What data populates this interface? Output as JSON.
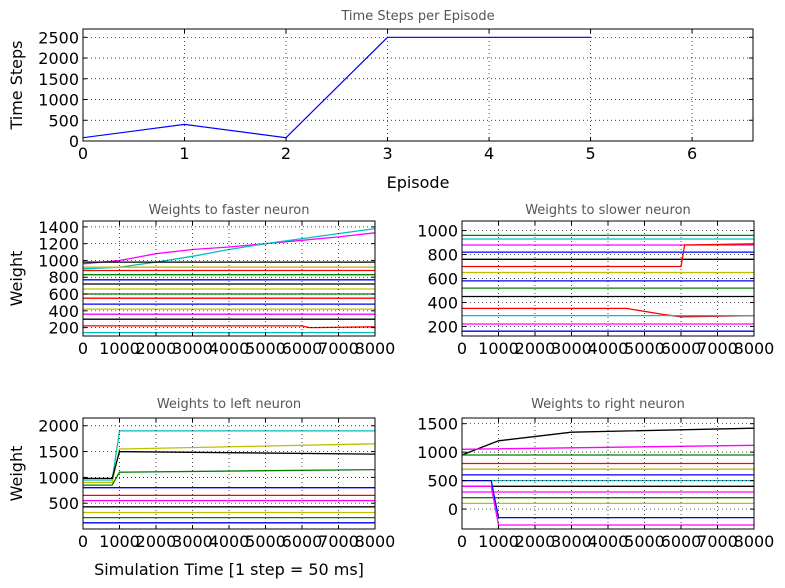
{
  "chart_data": [
    {
      "type": "line",
      "title": "Time Steps per Episode",
      "xlabel": "Episode",
      "ylabel": "Time Steps",
      "xlim": [
        0,
        6.6
      ],
      "ylim": [
        0,
        2700
      ],
      "xticks": [
        0,
        1,
        2,
        3,
        4,
        5,
        6
      ],
      "yticks": [
        0,
        500,
        1000,
        1500,
        2000,
        2500
      ],
      "grid": true,
      "series": [
        {
          "color": "#0000ff",
          "x": [
            0,
            1,
            2,
            3,
            4,
            5
          ],
          "y": [
            80,
            400,
            80,
            2500,
            2500,
            2500
          ]
        }
      ]
    },
    {
      "type": "line",
      "title": "Weights to faster neuron",
      "xlabel": "",
      "ylabel": "Weight",
      "xlim": [
        0,
        8000
      ],
      "ylim": [
        100,
        1470
      ],
      "xticks": [
        0,
        1000,
        2000,
        3000,
        4000,
        5000,
        6000,
        7000,
        8000
      ],
      "yticks": [
        200,
        400,
        600,
        800,
        1000,
        1200,
        1400
      ],
      "grid": true,
      "series": [
        {
          "color": "#ff00ff",
          "x": [
            0,
            1000,
            2000,
            3000,
            4000,
            5000,
            6000,
            7000,
            8000
          ],
          "y": [
            960,
            1000,
            1080,
            1130,
            1160,
            1200,
            1240,
            1280,
            1330
          ]
        },
        {
          "color": "#00bfbf",
          "x": [
            0,
            1000,
            2000,
            3000,
            4000,
            5000,
            6000,
            7000,
            8000
          ],
          "y": [
            900,
            920,
            980,
            1050,
            1130,
            1200,
            1260,
            1320,
            1380
          ]
        },
        {
          "color": "#000000",
          "x": [
            0,
            8000
          ],
          "y": [
            980,
            980
          ]
        },
        {
          "color": "#bfbf00",
          "x": [
            0,
            8000
          ],
          "y": [
            920,
            920
          ]
        },
        {
          "color": "#ff0000",
          "x": [
            0,
            8000
          ],
          "y": [
            880,
            880
          ]
        },
        {
          "color": "#008000",
          "x": [
            0,
            8000
          ],
          "y": [
            830,
            830
          ]
        },
        {
          "color": "#0000ff",
          "x": [
            0,
            8000
          ],
          "y": [
            770,
            770
          ]
        },
        {
          "color": "#000000",
          "x": [
            0,
            8000
          ],
          "y": [
            720,
            720
          ]
        },
        {
          "color": "#bfbf00",
          "x": [
            0,
            8000
          ],
          "y": [
            660,
            660
          ]
        },
        {
          "color": "#008000",
          "x": [
            0,
            8000
          ],
          "y": [
            600,
            600
          ]
        },
        {
          "color": "#ff0000",
          "x": [
            0,
            8000
          ],
          "y": [
            550,
            550
          ]
        },
        {
          "color": "#0000ff",
          "x": [
            0,
            8000
          ],
          "y": [
            480,
            480
          ]
        },
        {
          "color": "#bfbf00",
          "x": [
            0,
            8000
          ],
          "y": [
            420,
            420
          ]
        },
        {
          "color": "#ff00ff",
          "x": [
            0,
            8000
          ],
          "y": [
            360,
            360
          ]
        },
        {
          "color": "#000000",
          "x": [
            0,
            8000
          ],
          "y": [
            300,
            300
          ]
        },
        {
          "color": "#ff0000",
          "x": [
            0,
            6000,
            6200,
            8000
          ],
          "y": [
            220,
            220,
            200,
            210
          ]
        },
        {
          "color": "#00bfbf",
          "x": [
            0,
            8000
          ],
          "y": [
            140,
            140
          ]
        }
      ]
    },
    {
      "type": "line",
      "title": "Weights to slower neuron",
      "xlabel": "",
      "ylabel": "",
      "xlim": [
        0,
        8000
      ],
      "ylim": [
        120,
        1080
      ],
      "xticks": [
        0,
        1000,
        2000,
        3000,
        4000,
        5000,
        6000,
        7000,
        8000
      ],
      "yticks": [
        200,
        400,
        600,
        800,
        1000
      ],
      "grid": true,
      "series": [
        {
          "color": "#008000",
          "x": [
            0,
            8000
          ],
          "y": [
            960,
            960
          ]
        },
        {
          "color": "#00bfbf",
          "x": [
            0,
            8000
          ],
          "y": [
            930,
            930
          ]
        },
        {
          "color": "#ff00ff",
          "x": [
            0,
            8000
          ],
          "y": [
            880,
            880
          ]
        },
        {
          "color": "#0000ff",
          "x": [
            0,
            8000
          ],
          "y": [
            820,
            820
          ]
        },
        {
          "color": "#000000",
          "x": [
            0,
            8000
          ],
          "y": [
            760,
            760
          ]
        },
        {
          "color": "#ff0000",
          "x": [
            0,
            6000,
            6100,
            8000
          ],
          "y": [
            700,
            700,
            880,
            890
          ]
        },
        {
          "color": "#bfbf00",
          "x": [
            0,
            8000
          ],
          "y": [
            650,
            650
          ]
        },
        {
          "color": "#0000ff",
          "x": [
            0,
            8000
          ],
          "y": [
            580,
            580
          ]
        },
        {
          "color": "#008000",
          "x": [
            0,
            8000
          ],
          "y": [
            520,
            520
          ]
        },
        {
          "color": "#000000",
          "x": [
            0,
            8000
          ],
          "y": [
            450,
            450
          ]
        },
        {
          "color": "#ff0000",
          "x": [
            0,
            4500,
            5500,
            6000,
            8000
          ],
          "y": [
            350,
            350,
            300,
            280,
            290
          ]
        },
        {
          "color": "#00bfbf",
          "x": [
            0,
            8000
          ],
          "y": [
            290,
            290
          ]
        },
        {
          "color": "#ff00ff",
          "x": [
            0,
            8000
          ],
          "y": [
            220,
            220
          ]
        },
        {
          "color": "#0000ff",
          "x": [
            0,
            8000
          ],
          "y": [
            160,
            160
          ]
        }
      ]
    },
    {
      "type": "line",
      "title": "Weights to left neuron",
      "xlabel": "Simulation Time [1 step = 50 ms]",
      "ylabel": "Weight",
      "xlim": [
        0,
        8000
      ],
      "ylim": [
        0,
        2150
      ],
      "xticks": [
        0,
        1000,
        2000,
        3000,
        4000,
        5000,
        6000,
        7000,
        8000
      ],
      "yticks": [
        500,
        1000,
        1500,
        2000
      ],
      "grid": true,
      "series": [
        {
          "color": "#00bfbf",
          "x": [
            0,
            800,
            1000,
            8000
          ],
          "y": [
            950,
            950,
            1900,
            1900
          ]
        },
        {
          "color": "#bfbf00",
          "x": [
            0,
            800,
            1000,
            8000
          ],
          "y": [
            900,
            900,
            1550,
            1650
          ]
        },
        {
          "color": "#000000",
          "x": [
            0,
            800,
            1000,
            8000
          ],
          "y": [
            980,
            980,
            1500,
            1450
          ]
        },
        {
          "color": "#008000",
          "x": [
            0,
            800,
            1000,
            8000
          ],
          "y": [
            850,
            850,
            1100,
            1150
          ]
        },
        {
          "color": "#0000ff",
          "x": [
            0,
            8000
          ],
          "y": [
            800,
            800
          ]
        },
        {
          "color": "#ff0000",
          "x": [
            0,
            8000
          ],
          "y": [
            650,
            650
          ]
        },
        {
          "color": "#ff00ff",
          "x": [
            0,
            8000
          ],
          "y": [
            550,
            550
          ]
        },
        {
          "color": "#000000",
          "x": [
            0,
            8000
          ],
          "y": [
            430,
            430
          ]
        },
        {
          "color": "#bfbf00",
          "x": [
            0,
            8000
          ],
          "y": [
            320,
            320
          ]
        },
        {
          "color": "#008000",
          "x": [
            0,
            8000
          ],
          "y": [
            220,
            220
          ]
        },
        {
          "color": "#0000ff",
          "x": [
            0,
            8000
          ],
          "y": [
            120,
            120
          ]
        }
      ]
    },
    {
      "type": "line",
      "title": "Weights to right neuron",
      "xlabel": "",
      "ylabel": "",
      "xlim": [
        0,
        8000
      ],
      "ylim": [
        -350,
        1600
      ],
      "xticks": [
        0,
        1000,
        2000,
        3000,
        4000,
        5000,
        6000,
        7000,
        8000
      ],
      "yticks": [
        0,
        500,
        1000,
        1500
      ],
      "grid": true,
      "series": [
        {
          "color": "#000000",
          "x": [
            0,
            1000,
            3000,
            8000
          ],
          "y": [
            950,
            1200,
            1350,
            1420
          ]
        },
        {
          "color": "#ff00ff",
          "x": [
            0,
            8000
          ],
          "y": [
            1050,
            1120
          ]
        },
        {
          "color": "#008000",
          "x": [
            0,
            8000
          ],
          "y": [
            950,
            950
          ]
        },
        {
          "color": "#ff0000",
          "x": [
            0,
            8000
          ],
          "y": [
            800,
            800
          ]
        },
        {
          "color": "#bfbf00",
          "x": [
            0,
            8000
          ],
          "y": [
            700,
            700
          ]
        },
        {
          "color": "#0000ff",
          "x": [
            0,
            8000
          ],
          "y": [
            600,
            600
          ]
        },
        {
          "color": "#00bfbf",
          "x": [
            0,
            8000
          ],
          "y": [
            500,
            500
          ]
        },
        {
          "color": "#000000",
          "x": [
            0,
            8000
          ],
          "y": [
            400,
            400
          ]
        },
        {
          "color": "#ff00ff",
          "x": [
            0,
            8000
          ],
          "y": [
            300,
            300
          ]
        },
        {
          "color": "#008000",
          "x": [
            0,
            8000
          ],
          "y": [
            200,
            200
          ]
        },
        {
          "color": "#bfbf00",
          "x": [
            0,
            8000
          ],
          "y": [
            100,
            100
          ]
        },
        {
          "color": "#0000ff",
          "x": [
            0,
            800,
            1000,
            8000
          ],
          "y": [
            500,
            500,
            -150,
            -150
          ]
        },
        {
          "color": "#ff00ff",
          "x": [
            0,
            800,
            1000,
            8000
          ],
          "y": [
            400,
            400,
            -280,
            -280
          ]
        }
      ]
    }
  ]
}
